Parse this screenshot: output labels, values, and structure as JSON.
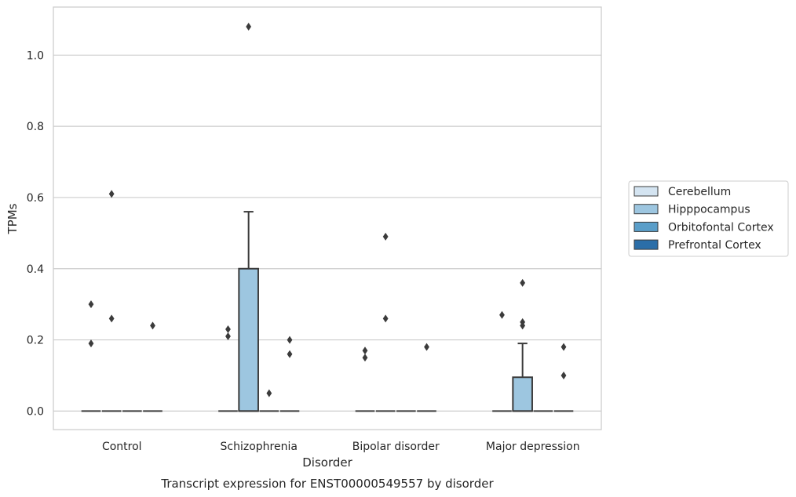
{
  "chart_data": {
    "type": "box",
    "title": "",
    "caption": "Transcript expression for ENST00000549557 by disorder",
    "xlabel": "Disorder",
    "ylabel": "TPMs",
    "ylim": [
      -0.052,
      1.135
    ],
    "yticks": [
      "0.0",
      "0.2",
      "0.4",
      "0.6",
      "0.8",
      "1.0"
    ],
    "ytick_values": [
      0,
      0.2,
      0.4,
      0.6,
      0.8,
      1.0
    ],
    "grid": true,
    "legend_position": "right",
    "categories": [
      "Control",
      "Schizophrenia",
      "Bipolar disorder",
      "Major depression"
    ],
    "series": [
      {
        "name": "Cerebellum",
        "color": "#d4e4f1",
        "boxes": [
          {
            "q1": 0,
            "median": 0,
            "q3": 0,
            "whisker_low": 0,
            "whisker_high": 0,
            "outliers": [
              0.3,
              0.19
            ]
          },
          {
            "q1": 0,
            "median": 0,
            "q3": 0,
            "whisker_low": 0,
            "whisker_high": 0,
            "outliers": []
          },
          {
            "q1": 0,
            "median": 0,
            "q3": 0,
            "whisker_low": 0,
            "whisker_high": 0,
            "outliers": [
              0.17,
              0.15
            ]
          },
          {
            "q1": 0,
            "median": 0,
            "q3": 0,
            "whisker_low": 0,
            "whisker_high": 0,
            "outliers": [
              0.27
            ]
          }
        ]
      },
      {
        "name": "Hipppocampus",
        "color": "#9dc6e0",
        "boxes": [
          {
            "q1": 0,
            "median": 0,
            "q3": 0,
            "whisker_low": 0,
            "whisker_high": 0,
            "outliers": [
              0.61,
              0.26
            ]
          },
          {
            "q1": 0,
            "median": 0,
            "q3": 0.4,
            "whisker_low": 0,
            "whisker_high": 0.56,
            "outliers": [
              1.08
            ]
          },
          {
            "q1": 0,
            "median": 0,
            "q3": 0,
            "whisker_low": 0,
            "whisker_high": 0,
            "outliers": [
              0.49,
              0.26
            ]
          },
          {
            "q1": 0,
            "median": 0,
            "q3": 0.095,
            "whisker_low": 0,
            "whisker_high": 0.19,
            "outliers": [
              0.36,
              0.25,
              0.24
            ]
          }
        ]
      },
      {
        "name": "Orbitofontal Cortex",
        "color": "#5a9ec9",
        "boxes": [
          {
            "q1": 0,
            "median": 0,
            "q3": 0,
            "whisker_low": 0,
            "whisker_high": 0,
            "outliers": []
          },
          {
            "q1": 0,
            "median": 0,
            "q3": 0,
            "whisker_low": 0,
            "whisker_high": 0,
            "outliers": [
              0.05
            ]
          },
          {
            "q1": 0,
            "median": 0,
            "q3": 0,
            "whisker_low": 0,
            "whisker_high": 0,
            "outliers": []
          },
          {
            "q1": 0,
            "median": 0,
            "q3": 0,
            "whisker_low": 0,
            "whisker_high": 0,
            "outliers": []
          }
        ]
      },
      {
        "name": "Prefrontal Cortex",
        "color": "#2b6ea8",
        "boxes": [
          {
            "q1": 0,
            "median": 0,
            "q3": 0,
            "whisker_low": 0,
            "whisker_high": 0,
            "outliers": [
              0.24
            ]
          },
          {
            "q1": 0,
            "median": 0,
            "q3": 0,
            "whisker_low": 0,
            "whisker_high": 0,
            "outliers": [
              0.2,
              0.16
            ]
          },
          {
            "q1": 0,
            "median": 0,
            "q3": 0,
            "whisker_low": 0,
            "whisker_high": 0,
            "outliers": [
              0.18
            ]
          },
          {
            "q1": 0,
            "median": 0,
            "q3": 0,
            "whisker_low": 0,
            "whisker_high": 0,
            "outliers": [
              0.18,
              0.1
            ]
          }
        ]
      }
    ],
    "schizophrenia_hippocampus_extra_outliers": [
      0.23,
      0.21
    ]
  }
}
